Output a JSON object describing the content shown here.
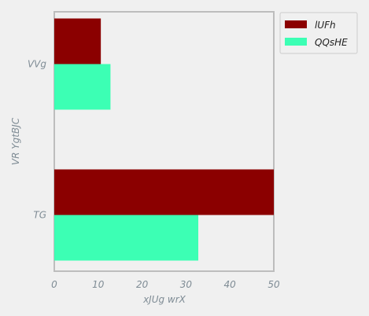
{
  "chart_data": {
    "type": "bar",
    "orientation": "horizontal",
    "categories": [
      "VVg",
      "TG"
    ],
    "series": [
      {
        "name": "lUFh",
        "values": [
          10.6,
          50
        ],
        "color": "#8b0000"
      },
      {
        "name": "QQsHE",
        "values": [
          12.8,
          32.8
        ],
        "color": "#3cffb4"
      }
    ],
    "xlabel": "xJUg wrX",
    "ylabel": "VR YgtBJC",
    "xlim": [
      0,
      50
    ],
    "xticks": [
      0,
      10,
      20,
      30,
      40,
      50
    ],
    "grid": false,
    "legend_position": "top-right-outside"
  }
}
